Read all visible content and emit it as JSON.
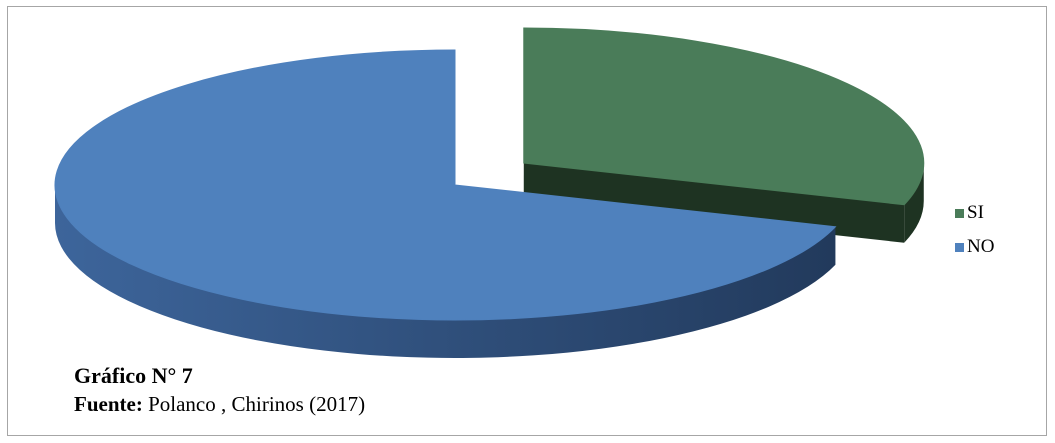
{
  "chart_data": {
    "type": "pie",
    "style": "3d-exploded",
    "slices": [
      {
        "label": "SI",
        "value": 30,
        "color": "#4a7c59",
        "side": "#1e3322",
        "exploded": true
      },
      {
        "label": "NO",
        "value": 70,
        "color": "#4f81bd",
        "side": "#2c4466",
        "exploded": false
      }
    ],
    "legend": {
      "position": "right",
      "entries": [
        "SI",
        "NO"
      ]
    }
  },
  "caption": {
    "title": "Gráfico N° 7",
    "source_label": "Fuente:",
    "source_text": " Polanco , Chirinos (2017)"
  }
}
